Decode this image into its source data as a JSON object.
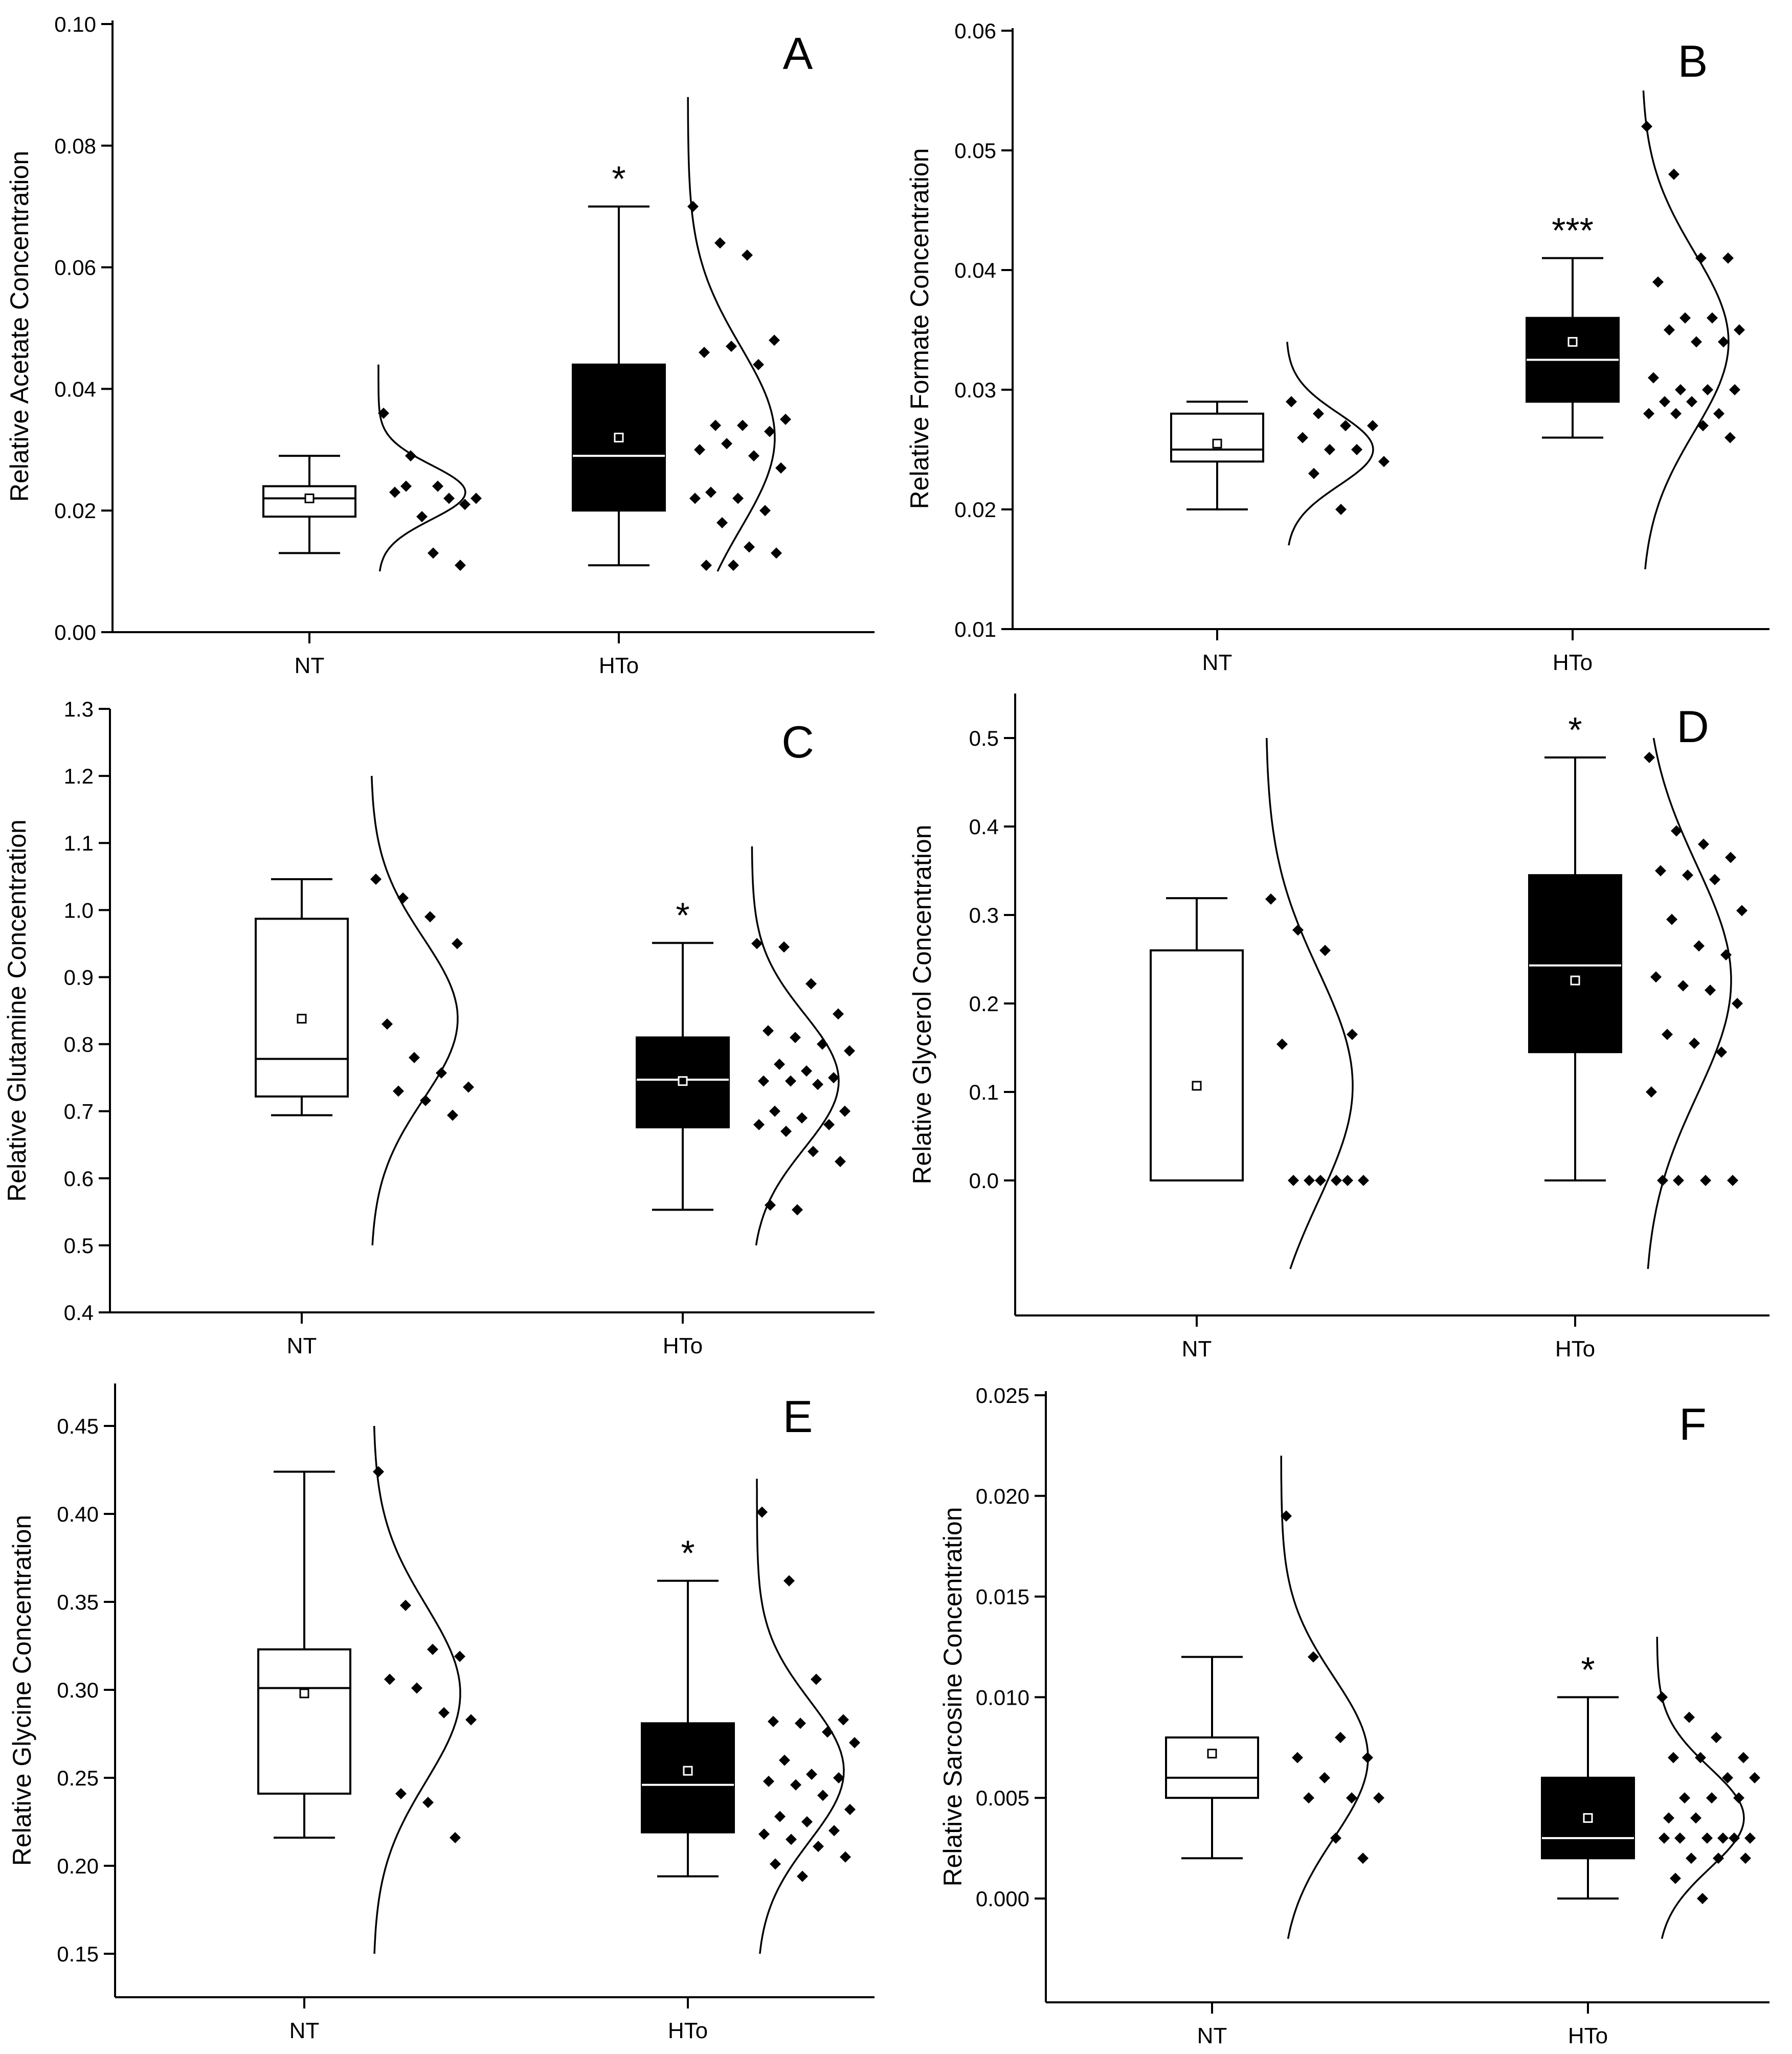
{
  "figure": {
    "description_panels": 6
  },
  "chart_data": [
    {
      "panel": "A",
      "type": "box",
      "categories": [
        "NT",
        "HTo"
      ],
      "ylabel": "Relative Acetate Concentration",
      "ylim": [
        0.0,
        0.1
      ],
      "yticks": [
        0.0,
        0.02,
        0.04,
        0.06,
        0.08,
        0.1
      ],
      "ytick_labels": [
        "0.00",
        "0.02",
        "0.04",
        "0.06",
        "0.08",
        "0.10"
      ],
      "yticks_visible_range": [
        0.0,
        0.1
      ],
      "groups": [
        {
          "name": "NT",
          "fill": "#ffffff",
          "q1": 0.019,
          "median": 0.022,
          "q3": 0.024,
          "mean": 0.022,
          "whisker_low": 0.013,
          "whisker_high": 0.029,
          "points": [
            0.036,
            0.029,
            0.024,
            0.021,
            0.023,
            0.019,
            0.022,
            0.022,
            0.024,
            0.013,
            0.011
          ],
          "curve_range": [
            0.01,
            0.044
          ],
          "curve_mean": 0.023,
          "curve_sd": 0.0045,
          "significance": ""
        },
        {
          "name": "HTo",
          "fill": "#000000",
          "q1": 0.02,
          "median": 0.029,
          "q3": 0.044,
          "mean": 0.032,
          "whisker_low": 0.011,
          "whisker_high": 0.07,
          "points": [
            0.07,
            0.064,
            0.062,
            0.048,
            0.046,
            0.047,
            0.044,
            0.035,
            0.034,
            0.034,
            0.033,
            0.03,
            0.031,
            0.029,
            0.027,
            0.023,
            0.022,
            0.02,
            0.022,
            0.018,
            0.014,
            0.013,
            0.011,
            0.011
          ],
          "curve_range": [
            0.01,
            0.088
          ],
          "curve_mean": 0.032,
          "curve_sd": 0.015,
          "significance": "*"
        }
      ]
    },
    {
      "panel": "B",
      "type": "box",
      "categories": [
        "NT",
        "HTo"
      ],
      "ylabel": "Relative Formate Concentration",
      "ylim": [
        0.01,
        0.06
      ],
      "yticks": [
        0.01,
        0.02,
        0.03,
        0.04,
        0.05,
        0.06
      ],
      "ytick_labels": [
        "0.01",
        "0.02",
        "0.03",
        "0.04",
        "0.05",
        "0.06"
      ],
      "groups": [
        {
          "name": "NT",
          "fill": "#ffffff",
          "q1": 0.024,
          "median": 0.025,
          "q3": 0.028,
          "mean": 0.0255,
          "whisker_low": 0.02,
          "whisker_high": 0.029,
          "points": [
            0.029,
            0.028,
            0.027,
            0.027,
            0.026,
            0.025,
            0.025,
            0.024,
            0.023,
            0.02
          ],
          "curve_range": [
            0.017,
            0.034
          ],
          "curve_mean": 0.025,
          "curve_sd": 0.003,
          "significance": ""
        },
        {
          "name": "HTo",
          "fill": "#000000",
          "q1": 0.029,
          "median": 0.0325,
          "q3": 0.036,
          "mean": 0.034,
          "whisker_low": 0.026,
          "whisker_high": 0.041,
          "points": [
            0.052,
            0.048,
            0.041,
            0.041,
            0.039,
            0.036,
            0.036,
            0.035,
            0.035,
            0.034,
            0.034,
            0.031,
            0.03,
            0.03,
            0.03,
            0.029,
            0.029,
            0.028,
            0.028,
            0.028,
            0.027,
            0.026
          ],
          "curve_range": [
            0.015,
            0.055
          ],
          "curve_mean": 0.034,
          "curve_sd": 0.0075,
          "significance": "***"
        }
      ]
    },
    {
      "panel": "C",
      "type": "box",
      "categories": [
        "NT",
        "HTo"
      ],
      "ylabel": "Relative Glutamine Concentration",
      "ylim": [
        0.4,
        1.3
      ],
      "yticks": [
        0.4,
        0.5,
        0.6,
        0.7,
        0.8,
        0.9,
        1.0,
        1.1,
        1.2,
        1.3
      ],
      "ytick_labels": [
        "0.4",
        "0.5",
        "0.6",
        "0.7",
        "0.8",
        "0.9",
        "1.0",
        "1.1",
        "1.2",
        "1.3"
      ],
      "groups": [
        {
          "name": "NT",
          "fill": "#ffffff",
          "q1": 0.722,
          "median": 0.778,
          "q3": 0.987,
          "mean": 0.838,
          "whisker_low": 0.694,
          "whisker_high": 1.046,
          "points": [
            1.046,
            1.018,
            0.99,
            0.95,
            0.83,
            0.78,
            0.757,
            0.736,
            0.73,
            0.716,
            0.694
          ],
          "curve_range": [
            0.5,
            1.2
          ],
          "curve_mean": 0.838,
          "curve_sd": 0.12,
          "significance": ""
        },
        {
          "name": "HTo",
          "fill": "#000000",
          "q1": 0.676,
          "median": 0.747,
          "q3": 0.81,
          "mean": 0.745,
          "whisker_low": 0.553,
          "whisker_high": 0.951,
          "points": [
            0.95,
            0.945,
            0.89,
            0.845,
            0.82,
            0.81,
            0.8,
            0.79,
            0.77,
            0.76,
            0.75,
            0.745,
            0.745,
            0.74,
            0.7,
            0.7,
            0.69,
            0.68,
            0.68,
            0.67,
            0.64,
            0.625,
            0.56,
            0.553
          ],
          "curve_range": [
            0.5,
            1.095
          ],
          "curve_mean": 0.745,
          "curve_sd": 0.1,
          "significance": "*"
        }
      ]
    },
    {
      "panel": "D",
      "type": "box",
      "categories": [
        "NT",
        "HTo"
      ],
      "ylabel": "Relative Glycerol Concentration",
      "ylim": [
        -0.15,
        0.55
      ],
      "yticks": [
        0.0,
        0.1,
        0.2,
        0.3,
        0.4,
        0.5
      ],
      "ytick_labels": [
        "0.0",
        "0.1",
        "0.2",
        "0.3",
        "0.4",
        "0.5"
      ],
      "groups": [
        {
          "name": "NT",
          "fill": "#ffffff",
          "q1": 0.0,
          "median": 0.0,
          "q3": 0.26,
          "mean": 0.107,
          "whisker_low": 0.0,
          "whisker_high": 0.319,
          "points": [
            0.318,
            0.283,
            0.26,
            0.165,
            0.154,
            0.0,
            0.0,
            0.0,
            0.0,
            0.0,
            0.0
          ],
          "curve_range": [
            -0.1,
            0.5
          ],
          "curve_mean": 0.107,
          "curve_sd": 0.13,
          "significance": ""
        },
        {
          "name": "HTo",
          "fill": "#000000",
          "q1": 0.145,
          "median": 0.243,
          "q3": 0.345,
          "mean": 0.226,
          "whisker_low": 0.0,
          "whisker_high": 0.478,
          "points": [
            0.478,
            0.395,
            0.38,
            0.365,
            0.35,
            0.345,
            0.34,
            0.305,
            0.295,
            0.265,
            0.255,
            0.23,
            0.22,
            0.215,
            0.2,
            0.165,
            0.155,
            0.145,
            0.1,
            0.0,
            0.0,
            0.0,
            0.0
          ],
          "curve_range": [
            -0.1,
            0.5
          ],
          "curve_mean": 0.226,
          "curve_sd": 0.13,
          "significance": "*"
        }
      ]
    },
    {
      "panel": "E",
      "type": "box",
      "categories": [
        "NT",
        "HTo"
      ],
      "ylabel": "Relative Glycine Concentration",
      "ylim": [
        0.14,
        0.4625
      ],
      "yticks": [
        0.15,
        0.2,
        0.25,
        0.3,
        0.35,
        0.4,
        0.45
      ],
      "ytick_labels": [
        "0.15",
        "0.20",
        "0.25",
        "0.30",
        "0.35",
        "0.40",
        "0.45"
      ],
      "groups": [
        {
          "name": "NT",
          "fill": "#ffffff",
          "q1": 0.241,
          "median": 0.301,
          "q3": 0.323,
          "mean": 0.298,
          "whisker_low": 0.216,
          "whisker_high": 0.424,
          "points": [
            0.424,
            0.348,
            0.323,
            0.319,
            0.306,
            0.301,
            0.287,
            0.283,
            0.241,
            0.236,
            0.216
          ],
          "curve_range": [
            0.15,
            0.45
          ],
          "curve_mean": 0.298,
          "curve_sd": 0.05,
          "significance": ""
        },
        {
          "name": "HTo",
          "fill": "#000000",
          "q1": 0.219,
          "median": 0.246,
          "q3": 0.281,
          "mean": 0.254,
          "whisker_low": 0.194,
          "whisker_high": 0.362,
          "points": [
            0.401,
            0.362,
            0.306,
            0.283,
            0.282,
            0.281,
            0.276,
            0.27,
            0.26,
            0.252,
            0.25,
            0.248,
            0.246,
            0.24,
            0.232,
            0.228,
            0.225,
            0.22,
            0.218,
            0.215,
            0.211,
            0.205,
            0.201,
            0.194
          ],
          "curve_range": [
            0.15,
            0.42
          ],
          "curve_mean": 0.254,
          "curve_sd": 0.04,
          "significance": "*"
        }
      ]
    },
    {
      "panel": "F",
      "type": "box",
      "categories": [
        "NT",
        "HTo"
      ],
      "ylabel": "Relative Sarcosine Concentration",
      "ylim": [
        -0.005,
        0.025
      ],
      "yticks": [
        0.0,
        0.005,
        0.01,
        0.015,
        0.02,
        0.025
      ],
      "ytick_labels": [
        "0.000",
        "0.005",
        "0.010",
        "0.015",
        "0.020",
        "0.025"
      ],
      "groups": [
        {
          "name": "NT",
          "fill": "#ffffff",
          "q1": 0.005,
          "median": 0.006,
          "q3": 0.008,
          "mean": 0.0072,
          "whisker_low": 0.002,
          "whisker_high": 0.012,
          "points": [
            0.019,
            0.012,
            0.008,
            0.007,
            0.007,
            0.006,
            0.005,
            0.005,
            0.005,
            0.003,
            0.002
          ],
          "curve_range": [
            -0.002,
            0.022
          ],
          "curve_mean": 0.007,
          "curve_sd": 0.004,
          "significance": ""
        },
        {
          "name": "HTo",
          "fill": "#000000",
          "q1": 0.002,
          "median": 0.003,
          "q3": 0.006,
          "mean": 0.004,
          "whisker_low": 0.0,
          "whisker_high": 0.01,
          "points": [
            0.01,
            0.009,
            0.008,
            0.007,
            0.007,
            0.007,
            0.006,
            0.006,
            0.005,
            0.005,
            0.005,
            0.004,
            0.004,
            0.003,
            0.003,
            0.003,
            0.003,
            0.003,
            0.003,
            0.002,
            0.002,
            0.002,
            0.001,
            0.0
          ],
          "curve_range": [
            -0.002,
            0.013
          ],
          "curve_mean": 0.004,
          "curve_sd": 0.0025,
          "significance": "*"
        }
      ]
    }
  ]
}
